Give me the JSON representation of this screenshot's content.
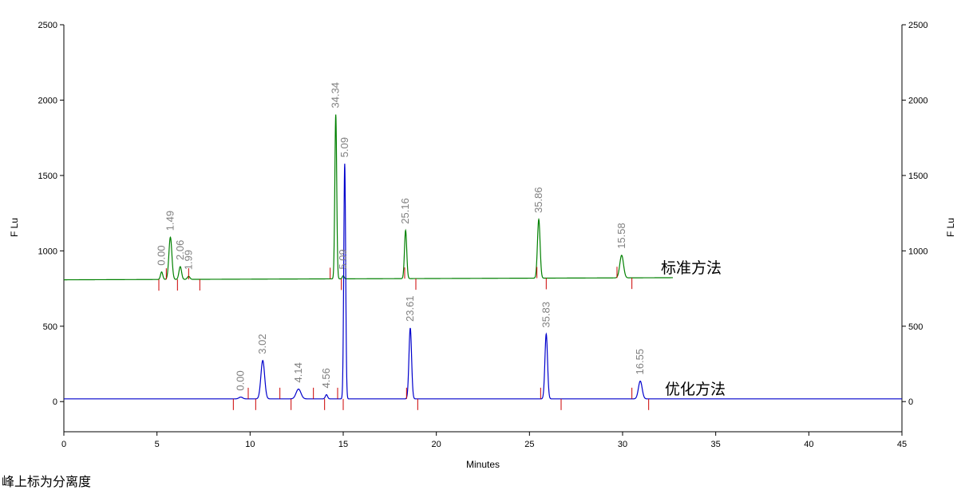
{
  "chart_data": {
    "type": "line",
    "title": "",
    "xlabel": "Minutes",
    "ylabel": "F Lu",
    "ylabel_right": "F Lu",
    "xlim": [
      0,
      45
    ],
    "ylim": [
      -200,
      2500
    ],
    "x_ticks": [
      "0",
      "5",
      "10",
      "15",
      "20",
      "25",
      "30",
      "35",
      "40",
      "45"
    ],
    "y_ticks": [
      "2500",
      "2000",
      "1500",
      "1000",
      "500",
      "0"
    ],
    "grid": false,
    "colors": {
      "standard": "#008000",
      "optimized": "#0000cc",
      "markers": "#cc0000",
      "labels": "#808080"
    },
    "series": [
      {
        "name": "标准方法",
        "baseline_start": 808,
        "baseline_end": 822,
        "x_end": 32.7,
        "peaks": [
          {
            "t": 5.25,
            "h": 50,
            "w": 0.06,
            "label": "0.00"
          },
          {
            "t": 5.72,
            "h": 280,
            "w": 0.08,
            "label": "1.49"
          },
          {
            "t": 6.25,
            "h": 85,
            "w": 0.07,
            "label": "2.06"
          },
          {
            "t": 6.7,
            "h": 20,
            "w": 0.07,
            "label": "1.99"
          },
          {
            "t": 14.6,
            "h": 1090,
            "w": 0.05,
            "label": "34.34"
          },
          {
            "t": 15.0,
            "h": 20,
            "w": 0.05,
            "label": "5.09"
          },
          {
            "t": 18.35,
            "h": 320,
            "w": 0.06,
            "label": "25.16"
          },
          {
            "t": 25.5,
            "h": 390,
            "w": 0.07,
            "label": "35.86"
          },
          {
            "t": 29.95,
            "h": 150,
            "w": 0.1,
            "label": "15.58"
          }
        ],
        "markers": [
          5.1,
          5.5,
          6.1,
          6.7,
          7.3,
          14.3,
          14.9,
          18.3,
          18.9,
          25.4,
          25.9,
          29.7,
          30.5
        ]
      },
      {
        "name": "优化方法",
        "baseline_start": 18,
        "baseline_end": 18,
        "x_end": 45,
        "peaks": [
          {
            "t": 9.5,
            "h": 12,
            "w": 0.1,
            "label": "0.00"
          },
          {
            "t": 10.68,
            "h": 255,
            "w": 0.1,
            "label": "3.02"
          },
          {
            "t": 12.6,
            "h": 65,
            "w": 0.13,
            "label": "4.14"
          },
          {
            "t": 14.1,
            "h": 28,
            "w": 0.06,
            "label": "4.56"
          },
          {
            "t": 15.08,
            "h": 1560,
            "w": 0.05,
            "label": "5.09"
          },
          {
            "t": 18.6,
            "h": 470,
            "w": 0.07,
            "label": "23.61"
          },
          {
            "t": 25.9,
            "h": 430,
            "w": 0.07,
            "label": "35.83"
          },
          {
            "t": 30.95,
            "h": 118,
            "w": 0.1,
            "label": "16.55"
          }
        ],
        "markers": [
          9.1,
          9.9,
          10.3,
          11.6,
          12.2,
          13.4,
          14.0,
          14.7,
          15.0,
          18.4,
          19.0,
          25.6,
          26.7,
          30.5,
          31.4
        ]
      }
    ]
  },
  "footnote": "峰上标为分离度"
}
